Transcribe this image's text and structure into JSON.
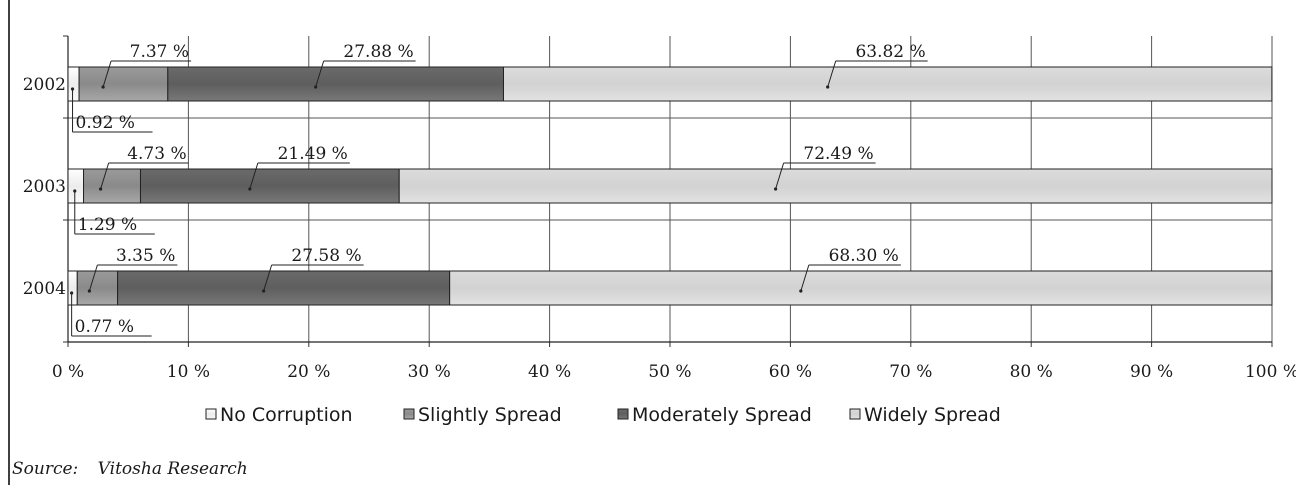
{
  "chart_data": {
    "type": "bar",
    "orientation": "horizontal",
    "stacked": true,
    "percent_stacked": true,
    "categories": [
      "2002",
      "2003",
      "2004"
    ],
    "series": [
      {
        "name": "No Corruption",
        "values": [
          0.92,
          1.29,
          0.77
        ],
        "labels": [
          "0.92 %",
          "1.29 %",
          "0.77 %"
        ],
        "color": "#f2f2f2"
      },
      {
        "name": "Slightly Spread",
        "values": [
          7.37,
          4.73,
          3.35
        ],
        "labels": [
          "7.37 %",
          "4.73 %",
          "3.35 %"
        ],
        "color": "#a6a6a6"
      },
      {
        "name": "Moderately Spread",
        "values": [
          27.88,
          21.49,
          27.58
        ],
        "labels": [
          "27.88 %",
          "21.49 %",
          "27.58 %"
        ],
        "color": "#7c7c7c"
      },
      {
        "name": "Widely Spread",
        "values": [
          63.82,
          72.49,
          68.3
        ],
        "labels": [
          "63.82 %",
          "72.49 %",
          "68.30 %"
        ],
        "color": "#d9d9d9"
      }
    ],
    "xlim": [
      0,
      100
    ],
    "xticks": [
      "0 %",
      "10 %",
      "20 %",
      "30 %",
      "40 %",
      "50 %",
      "60 %",
      "70 %",
      "80 %",
      "90 %",
      "100 %"
    ],
    "grid": true,
    "legend_position": "bottom"
  },
  "source": {
    "label": "Source:",
    "text": "Vitosha Research"
  }
}
